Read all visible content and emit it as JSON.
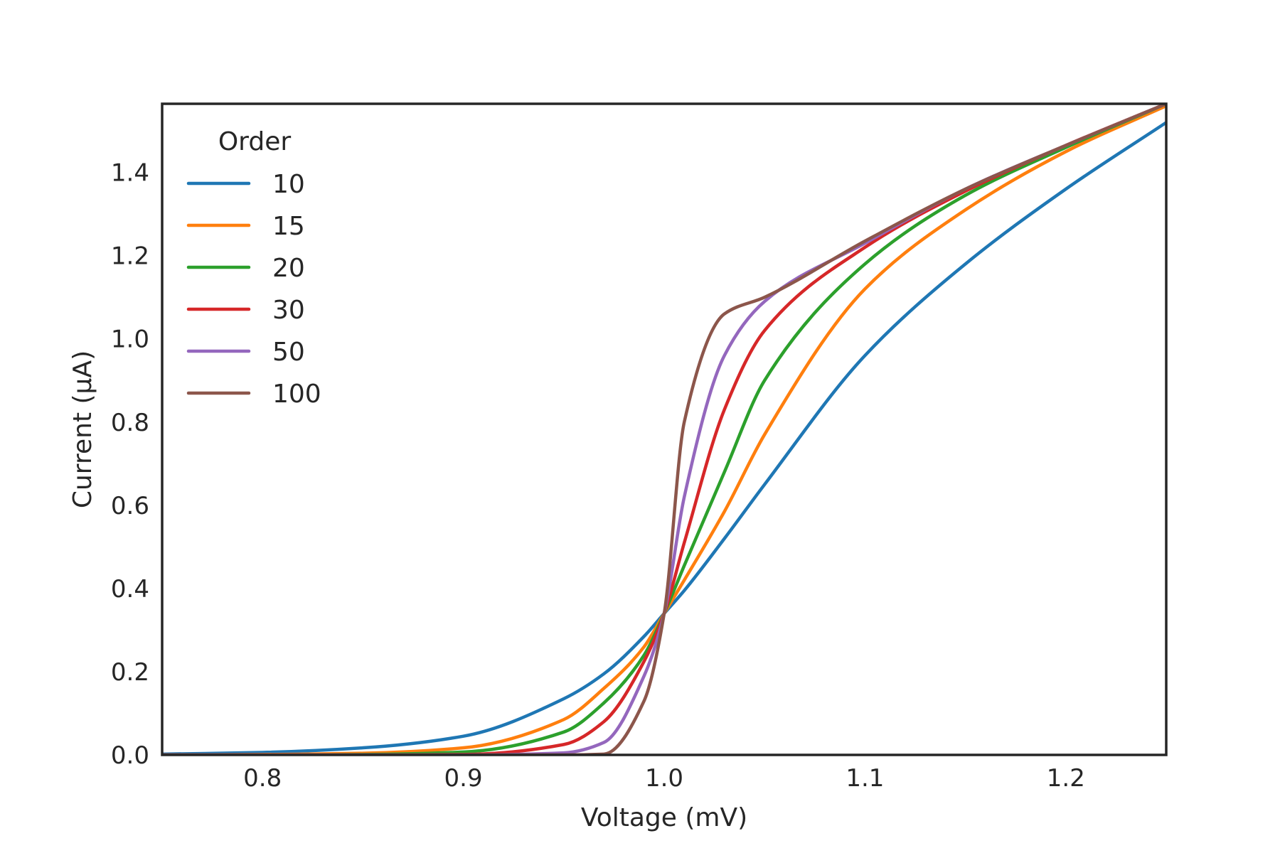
{
  "chart_data": {
    "type": "line",
    "title": "",
    "xlabel": "Voltage (mV)",
    "ylabel": "Current (µA)",
    "xlim": [
      0.75,
      1.25
    ],
    "ylim": [
      0.0,
      1.565
    ],
    "xticks": [
      0.8,
      0.9,
      1.0,
      1.1,
      1.2
    ],
    "xtick_labels": [
      "0.8",
      "0.9",
      "1.0",
      "1.1",
      "1.2"
    ],
    "yticks": [
      0.0,
      0.2,
      0.4,
      0.6,
      0.8,
      1.0,
      1.2,
      1.4
    ],
    "ytick_labels": [
      "0.0",
      "0.2",
      "0.4",
      "0.6",
      "0.8",
      "1.0",
      "1.2",
      "1.4"
    ],
    "grid": false,
    "legend": {
      "title": "Order",
      "placement": "upper-left"
    },
    "x": [
      0.75,
      0.8,
      0.85,
      0.9,
      0.95,
      0.97,
      0.99,
      1.0,
      1.01,
      1.03,
      1.05,
      1.1,
      1.15,
      1.2,
      1.25
    ],
    "series": [
      {
        "name": "10",
        "color": "#1f77b4",
        "values": [
          0.002,
          0.006,
          0.017,
          0.045,
          0.135,
          0.195,
          0.285,
          0.34,
          0.395,
          0.52,
          0.65,
          0.96,
          1.18,
          1.36,
          1.52
        ]
      },
      {
        "name": "15",
        "color": "#ff7f0e",
        "values": [
          0.0,
          0.001,
          0.004,
          0.017,
          0.085,
          0.16,
          0.26,
          0.34,
          0.42,
          0.585,
          0.77,
          1.12,
          1.31,
          1.45,
          1.56
        ]
      },
      {
        "name": "20",
        "color": "#2ca02c",
        "values": [
          0.0,
          0.0,
          0.001,
          0.007,
          0.055,
          0.125,
          0.24,
          0.34,
          0.455,
          0.68,
          0.9,
          1.18,
          1.345,
          1.46,
          1.565
        ]
      },
      {
        "name": "30",
        "color": "#d62728",
        "values": [
          0.0,
          0.0,
          0.0,
          0.001,
          0.025,
          0.08,
          0.225,
          0.34,
          0.51,
          0.83,
          1.02,
          1.22,
          1.355,
          1.465,
          1.565
        ]
      },
      {
        "name": "50",
        "color": "#9467bd",
        "values": [
          0.0,
          0.0,
          0.0,
          0.0,
          0.005,
          0.03,
          0.19,
          0.34,
          0.62,
          0.96,
          1.09,
          1.23,
          1.36,
          1.465,
          1.565
        ]
      },
      {
        "name": "100",
        "color": "#8c564b",
        "values": [
          0.0,
          0.0,
          0.0,
          0.0,
          0.0,
          0.002,
          0.13,
          0.34,
          0.8,
          1.06,
          1.1,
          1.235,
          1.36,
          1.465,
          1.565
        ]
      }
    ]
  }
}
